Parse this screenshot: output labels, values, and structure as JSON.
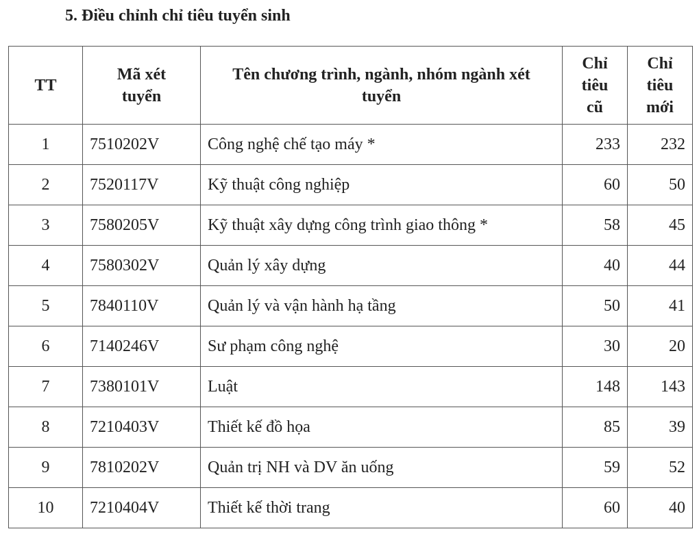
{
  "header": {
    "title": "5. Điều chỉnh chỉ tiêu tuyển sinh"
  },
  "table": {
    "columns": [
      "TT",
      "Mã xét tuyển",
      "Tên chương trình, ngành, nhóm ngành xét tuyển",
      "Chỉ tiêu cũ",
      "Chỉ tiêu mới"
    ],
    "rows": [
      [
        1,
        "7510202V",
        "Công nghệ chế tạo máy *",
        233,
        232
      ],
      [
        2,
        "7520117V",
        "Kỹ thuật công nghiệp",
        60,
        50
      ],
      [
        3,
        "7580205V",
        "Kỹ thuật xây dựng công trình giao thông *",
        58,
        45
      ],
      [
        4,
        "7580302V",
        "Quản lý xây dựng",
        40,
        44
      ],
      [
        5,
        "7840110V",
        "Quản lý và vận hành hạ tầng",
        50,
        41
      ],
      [
        6,
        "7140246V",
        "Sư phạm công nghệ",
        30,
        20
      ],
      [
        7,
        "7380101V",
        "Luật",
        148,
        143
      ],
      [
        8,
        "7210403V",
        "Thiết kế đồ họa",
        85,
        39
      ],
      [
        9,
        "7810202V",
        "Quản trị NH và DV ăn uống",
        59,
        52
      ],
      [
        10,
        "7210404V",
        "Thiết kế thời trang",
        60,
        40
      ]
    ]
  }
}
